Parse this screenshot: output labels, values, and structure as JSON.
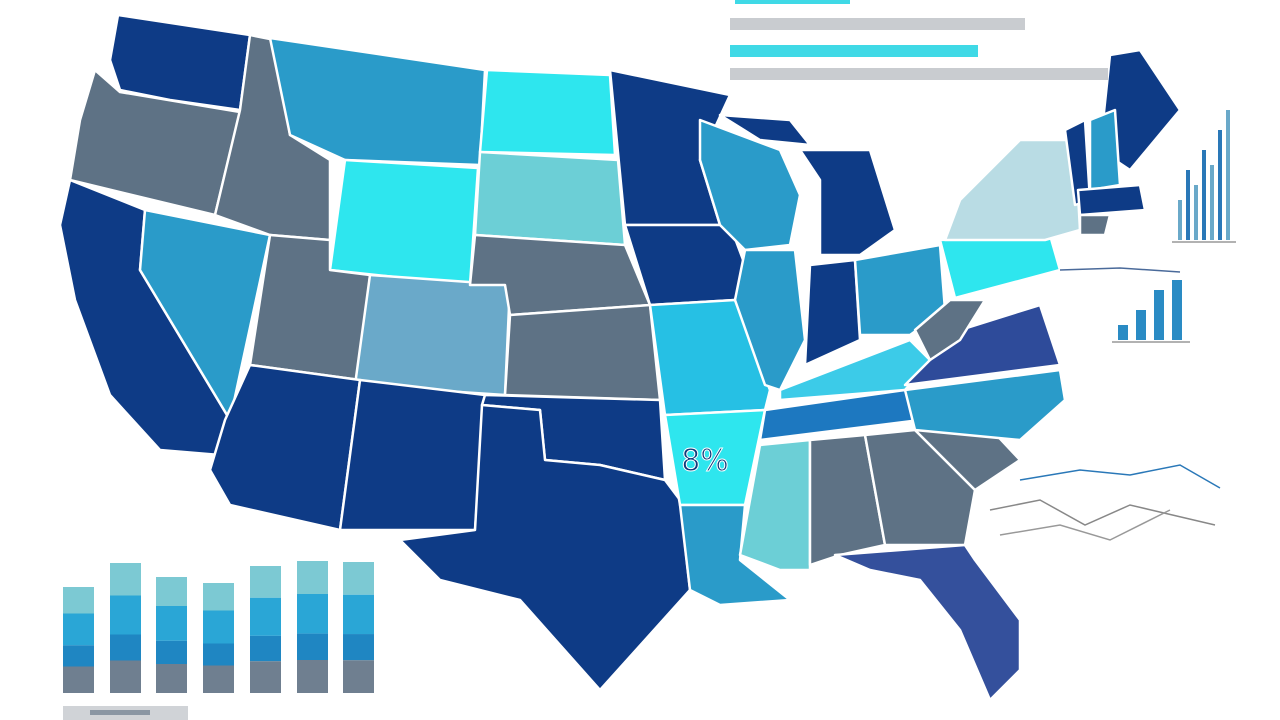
{
  "map": {
    "label": "8%"
  }
}
